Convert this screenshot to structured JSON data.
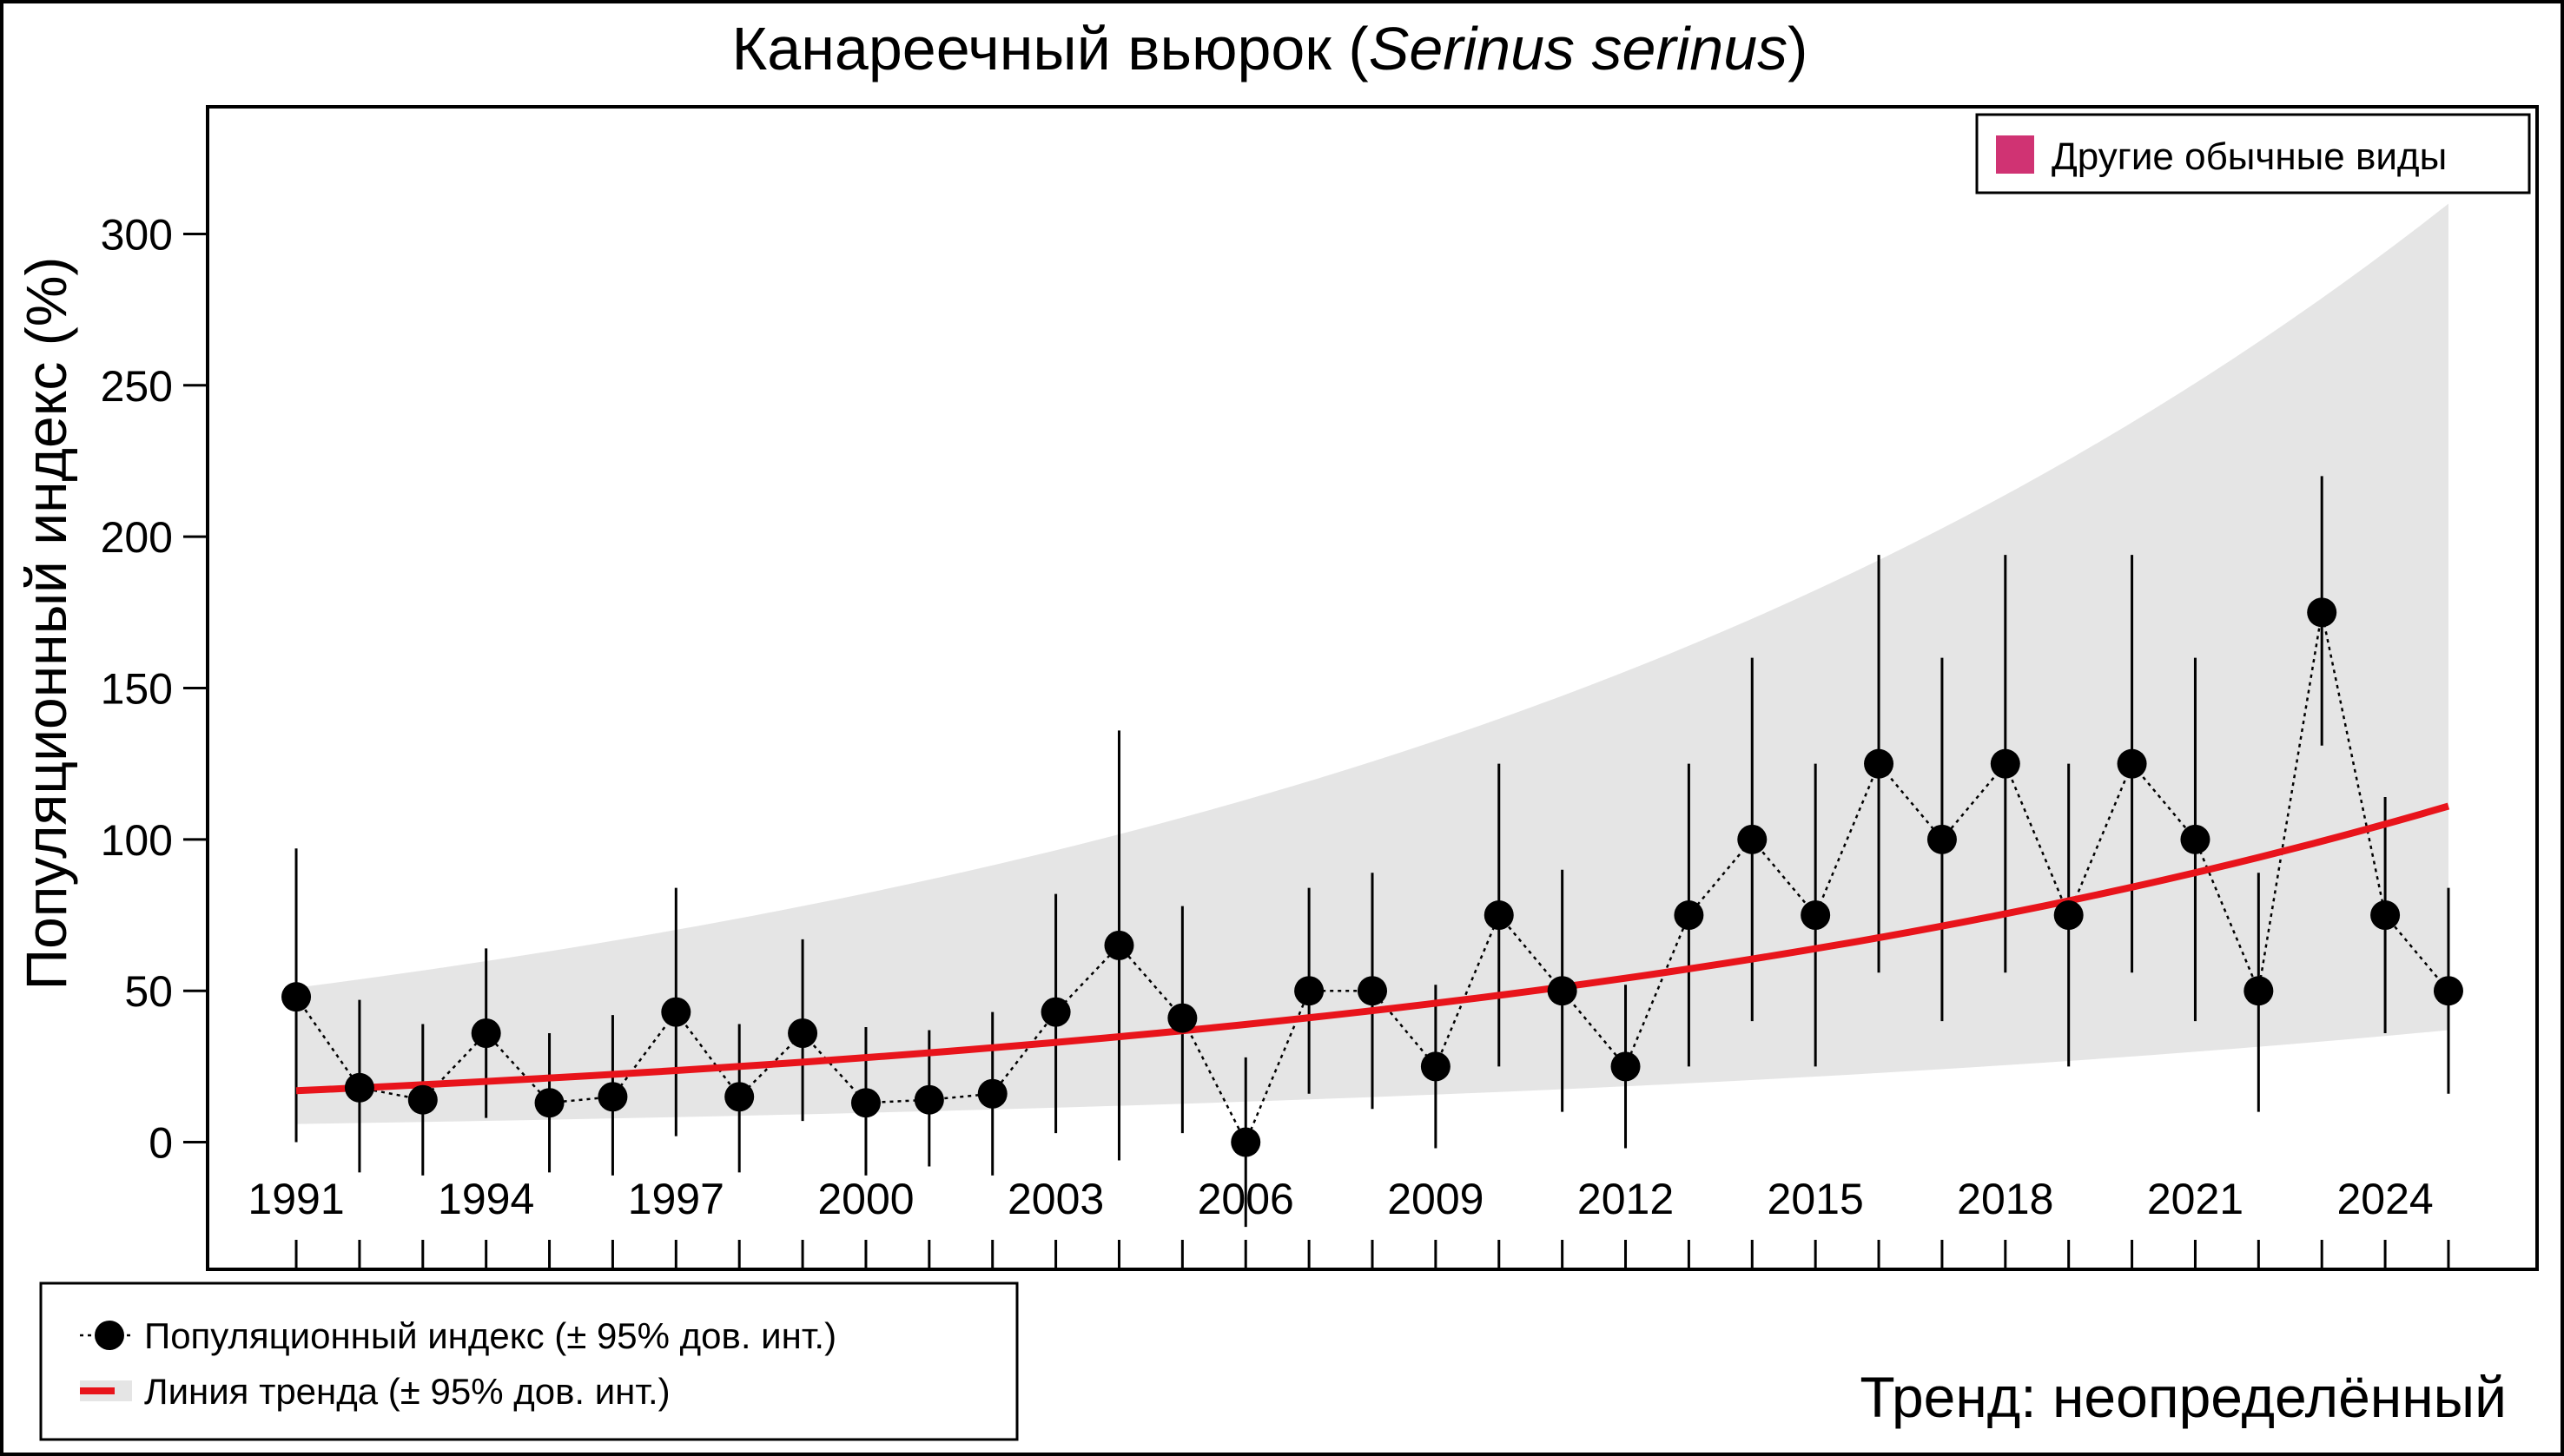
{
  "chart_data": {
    "type": "scatter",
    "title": "Канареечный вьюрок (",
    "title_italic": "Serinus serinus",
    "title_end": ")",
    "xlabel": "",
    "ylabel": "Популяционный индекс (%)",
    "xlim": [
      1989.6,
      2026.4
    ],
    "ylim": [
      -42,
      342
    ],
    "xticks": [
      1991,
      1994,
      1997,
      2000,
      2003,
      2006,
      2009,
      2012,
      2015,
      2018,
      2021,
      2024
    ],
    "yticks": [
      0,
      50,
      100,
      150,
      200,
      250,
      300
    ],
    "grid": false,
    "x": [
      1991,
      1992,
      1993,
      1994,
      1995,
      1996,
      1997,
      1998,
      1999,
      2000,
      2001,
      2002,
      2003,
      2004,
      2005,
      2006,
      2007,
      2008,
      2009,
      2010,
      2011,
      2012,
      2013,
      2014,
      2015,
      2016,
      2017,
      2018,
      2019,
      2020,
      2021,
      2022,
      2023,
      2024,
      2025
    ],
    "series": [
      {
        "name": "Популяционный индекс (± 95% дов. инт.)",
        "values": [
          48,
          18,
          14,
          36,
          13,
          15,
          43,
          15,
          36,
          13,
          14,
          16,
          43,
          65,
          41,
          0,
          50,
          50,
          25,
          75,
          50,
          25,
          75,
          100,
          75,
          125,
          100,
          125,
          75,
          125,
          100,
          50,
          175,
          75,
          50
        ],
        "ci_low": [
          0,
          -10,
          -11,
          8,
          -10,
          -11,
          2,
          -10,
          7,
          -11,
          -8,
          -11,
          3,
          -6,
          3,
          -28,
          16,
          11,
          -2,
          25,
          10,
          -2,
          25,
          40,
          25,
          56,
          40,
          56,
          25,
          56,
          40,
          10,
          131,
          36,
          16
        ],
        "ci_high": [
          97,
          47,
          39,
          64,
          36,
          42,
          84,
          39,
          67,
          38,
          37,
          43,
          82,
          136,
          78,
          28,
          84,
          89,
          52,
          125,
          90,
          52,
          125,
          160,
          125,
          194,
          160,
          194,
          125,
          194,
          160,
          89,
          220,
          114,
          84
        ]
      },
      {
        "name": "Линия тренда (± 95% дов. инт.)",
        "trend_start": 17,
        "trend_end": 111,
        "band_low_start": 6,
        "band_low_end": 37,
        "band_high_start": 51,
        "band_high_end": 310
      }
    ],
    "legend_top": {
      "label": "Другие обычные виды",
      "placement": "top-right"
    },
    "legend_bottom_placement": "bottom-left",
    "annotation": "Тренд: неопределённый"
  },
  "colors": {
    "trend": "#e8141b",
    "band": "#e5e5e5",
    "other_species": "#d03373",
    "points": "#000000"
  }
}
